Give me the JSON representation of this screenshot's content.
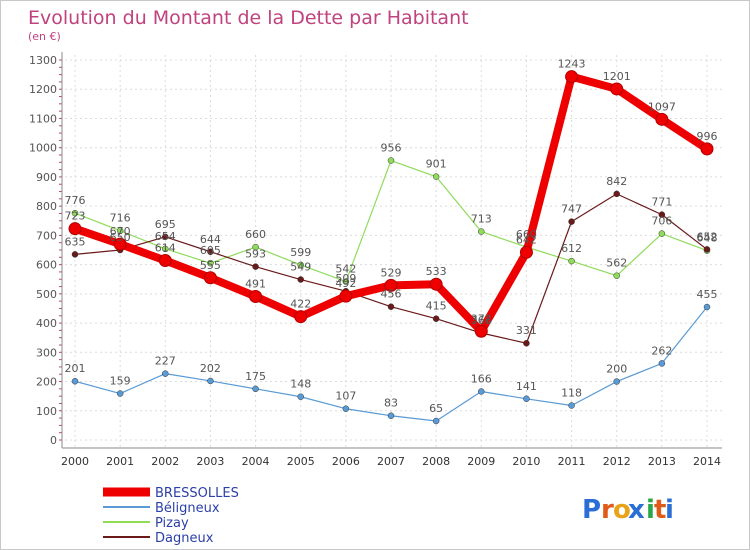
{
  "chart_data": {
    "type": "line",
    "title": "Evolution du Montant de la Dette par Habitant",
    "ylabel": "(en €)",
    "xlabel": "",
    "categories": [
      "2000",
      "2001",
      "2002",
      "2003",
      "2004",
      "2005",
      "2006",
      "2007",
      "2008",
      "2009",
      "2010",
      "2011",
      "2012",
      "2013",
      "2014"
    ],
    "ylim": [
      0,
      1300
    ],
    "yticks": [
      "0",
      "100",
      "200",
      "300",
      "400",
      "500",
      "600",
      "700",
      "800",
      "900",
      "1000",
      "1100",
      "1200",
      "1300"
    ],
    "grid": true,
    "legend_position": "bottom-left",
    "series": [
      {
        "name": "BRESSOLLES",
        "color": "#ee0000",
        "values": [
          723,
          670,
          614,
          555,
          491,
          422,
          492,
          529,
          533,
          372,
          642,
          1243,
          1201,
          1097,
          996
        ]
      },
      {
        "name": "Béligneux",
        "color": "#5a9ad5",
        "values": [
          201,
          159,
          227,
          202,
          175,
          148,
          107,
          83,
          65,
          166,
          141,
          118,
          200,
          262,
          455
        ]
      },
      {
        "name": "Pizay",
        "color": "#8fdb5a",
        "values": [
          776,
          716,
          654,
          605,
          660,
          599,
          542,
          956,
          901,
          713,
          660,
          612,
          562,
          706,
          648
        ]
      },
      {
        "name": "Dagneux",
        "color": "#6b1a1a",
        "values": [
          635,
          650,
          695,
          644,
          593,
          549,
          509,
          456,
          415,
          366,
          331,
          747,
          842,
          771,
          652
        ]
      }
    ]
  },
  "logo": {
    "text": "Proxiti",
    "letters": [
      "P",
      "r",
      "o",
      "x",
      "i",
      "t",
      "i"
    ],
    "letter_colors": [
      "#2b6fd6",
      "#e05a1a",
      "#e8a317",
      "#2b6fd6",
      "#2aa847",
      "#e05a1a",
      "#2b6fd6"
    ]
  }
}
